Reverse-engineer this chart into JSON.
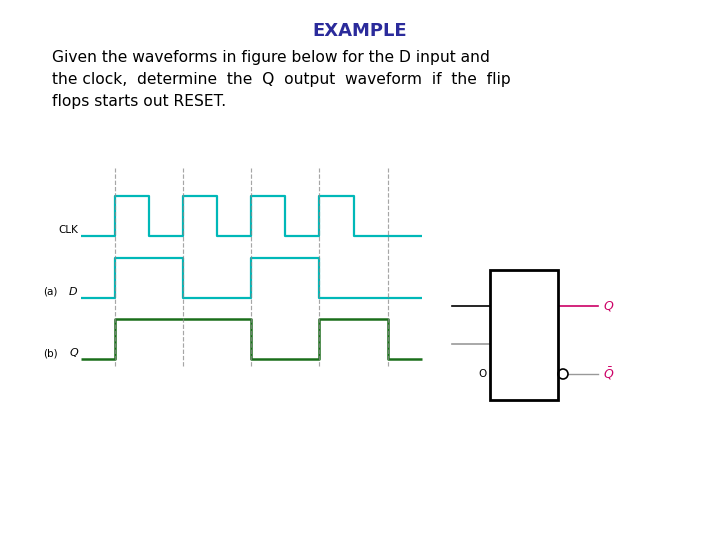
{
  "title": "EXAMPLE",
  "title_color": "#2B2B9B",
  "desc_line1": "Given the waveforms in figure below for the D input and",
  "desc_line2": "the clock,  determine  the  Q  output  waveform  if  the  flip",
  "desc_line3": "flops starts out RESET.",
  "clk_color": "#00B8B8",
  "d_color": "#00B8B8",
  "q_color": "#1A6E1A",
  "dashed_color": "#888888",
  "bg_color": "#FFFFFF",
  "clk_t": [
    0,
    1,
    1,
    2,
    2,
    3,
    3,
    4,
    4,
    5,
    5,
    6,
    6,
    7,
    7,
    8,
    8,
    9,
    9,
    10
  ],
  "clk_v": [
    0,
    0,
    1,
    1,
    0,
    0,
    1,
    1,
    0,
    0,
    1,
    1,
    0,
    0,
    1,
    1,
    0,
    0,
    0,
    0
  ],
  "d_t": [
    0,
    1,
    1,
    3,
    3,
    5,
    5,
    7,
    7,
    9,
    9,
    10
  ],
  "d_v": [
    0,
    0,
    1,
    1,
    0,
    0,
    1,
    1,
    0,
    0,
    0,
    0
  ],
  "q_t": [
    0,
    1,
    1,
    5,
    5,
    7,
    7,
    9,
    9,
    10
  ],
  "q_v": [
    0,
    0,
    1,
    1,
    0,
    0,
    1,
    1,
    0,
    0
  ],
  "dashed_x": [
    1,
    3,
    5,
    7,
    9
  ],
  "q_out_color": "#CC0066",
  "qbar_color": "#CC0066",
  "text_color": "#000000"
}
